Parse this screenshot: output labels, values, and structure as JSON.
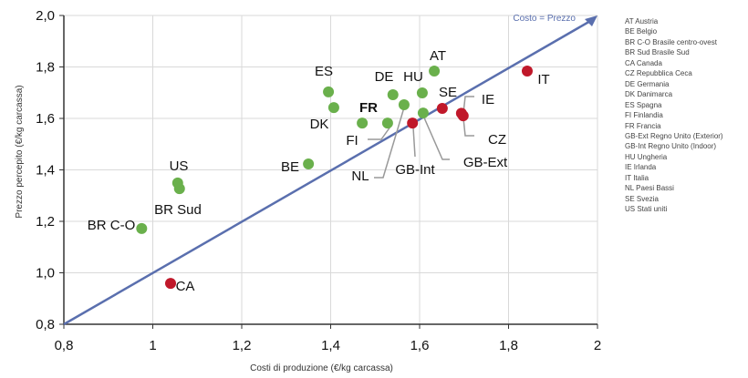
{
  "chart_data": {
    "type": "scatter",
    "xlabel": "Costi di produzione (€/kg carcassa)",
    "ylabel": "Prezzo percepito (€/kg carcassa)",
    "xlim": [
      0.8,
      2.0
    ],
    "ylim": [
      0.8,
      2.0
    ],
    "x_ticks": [
      "0,8",
      "1",
      "1,2",
      "1,4",
      "1,6",
      "1,8",
      "2"
    ],
    "y_ticks": [
      "0,8",
      "1,0",
      "1,2",
      "1,4",
      "1,6",
      "1,8",
      "2,0"
    ],
    "grid": true,
    "reference_line": {
      "label": "Costo = Prezzo",
      "from": [
        0.8,
        0.8
      ],
      "to": [
        2.0,
        2.0
      ],
      "color": "#5a6fae"
    },
    "colors": {
      "below_line": "#6ab04c",
      "above_line": "#c0182a"
    },
    "points": [
      {
        "label": "AT",
        "x": 1.633,
        "y": 1.784,
        "group": "below_line"
      },
      {
        "label": "ES",
        "x": 1.395,
        "y": 1.703,
        "group": "below_line"
      },
      {
        "label": "DK",
        "x": 1.407,
        "y": 1.642,
        "group": "below_line"
      },
      {
        "label": "DE",
        "x": 1.54,
        "y": 1.692,
        "group": "below_line"
      },
      {
        "label": "HU",
        "x": 1.606,
        "y": 1.699,
        "group": "below_line"
      },
      {
        "label": "NL",
        "x": 1.565,
        "y": 1.653,
        "group": "below_line"
      },
      {
        "label": "FR",
        "x": 1.471,
        "y": 1.582,
        "group": "below_line",
        "bold": true
      },
      {
        "label": "FI",
        "x": 1.528,
        "y": 1.582,
        "group": "below_line"
      },
      {
        "label": "GB-Int",
        "x": 1.584,
        "y": 1.582,
        "group": "above_line"
      },
      {
        "label": "GB-Ext",
        "x": 1.608,
        "y": 1.621,
        "group": "below_line"
      },
      {
        "label": "SE",
        "x": 1.651,
        "y": 1.639,
        "group": "above_line"
      },
      {
        "label": "IE",
        "x": 1.694,
        "y": 1.62,
        "group": "above_line"
      },
      {
        "label": "CZ",
        "x": 1.698,
        "y": 1.61,
        "group": "above_line"
      },
      {
        "label": "IT",
        "x": 1.842,
        "y": 1.784,
        "group": "above_line"
      },
      {
        "label": "BE",
        "x": 1.35,
        "y": 1.423,
        "group": "below_line"
      },
      {
        "label": "US",
        "x": 1.056,
        "y": 1.349,
        "group": "below_line"
      },
      {
        "label": "BR Sud",
        "x": 1.06,
        "y": 1.327,
        "group": "below_line"
      },
      {
        "label": "BR C-O",
        "x": 0.975,
        "y": 1.172,
        "group": "below_line"
      },
      {
        "label": "CA",
        "x": 1.04,
        "y": 0.959,
        "group": "above_line"
      }
    ],
    "legend": [
      "AT Austria",
      "BE Belgio",
      "BR C-O Brasile centro-ovest",
      "BR Sud Brasile Sud",
      "CA Canada",
      "CZ Repubblica Ceca",
      "DE Germania",
      "DK Danimarca",
      "ES Spagna",
      "FI Finlandia",
      "FR Francia",
      "GB-Ext Regno Unito (Exterior)",
      "GB-Int Regno Unito (Indoor)",
      "HU Ungheria",
      "IE Irlanda",
      "IT Italia",
      "NL Paesi Bassi",
      "SE Svezia",
      "US Stati uniti"
    ]
  }
}
